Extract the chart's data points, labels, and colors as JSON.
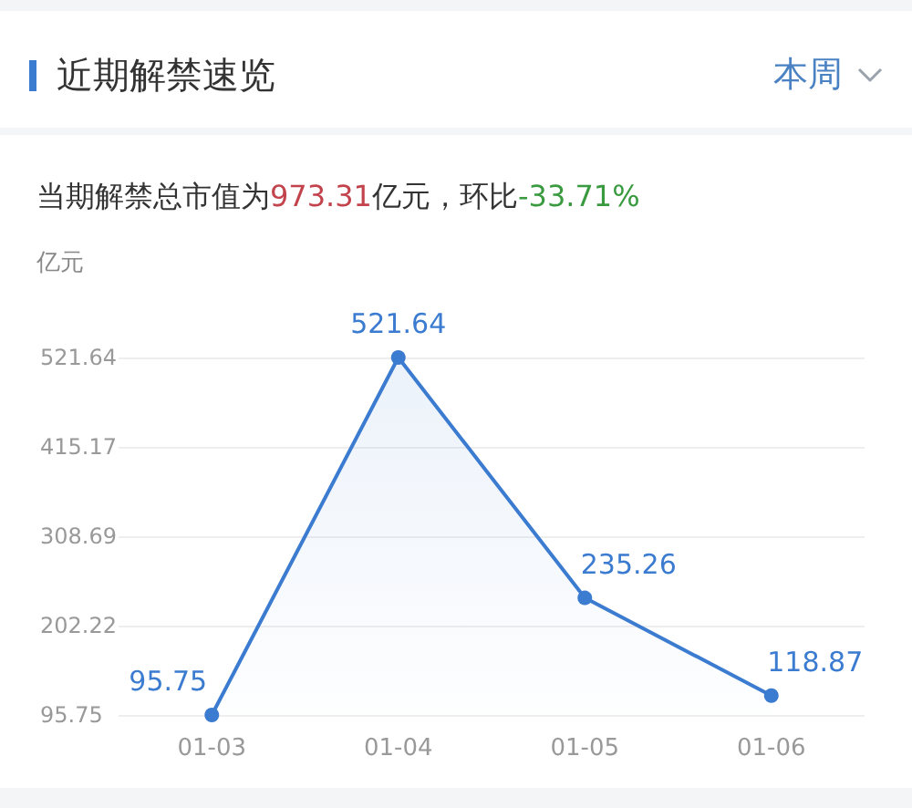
{
  "chart_data": {
    "type": "area",
    "title": "近期解禁速览",
    "subtitle": "当期解禁总市值为973.31亿元，环比-33.71%",
    "ylabel": "亿元",
    "annotations": [
      "本周"
    ],
    "categories": [
      "01-03",
      "01-04",
      "01-05",
      "01-06"
    ],
    "series": [
      {
        "color": "#3b7bd0",
        "values": [
          95.75,
          521.64,
          235.26,
          118.87
        ]
      }
    ],
    "ylim": [
      95.75,
      521.64
    ],
    "yticks": [
      95.75,
      202.22,
      308.69,
      415.17,
      521.64
    ],
    "grid": "y",
    "marker": "circle",
    "line_style": "solid",
    "data_labels": true
  }
}
